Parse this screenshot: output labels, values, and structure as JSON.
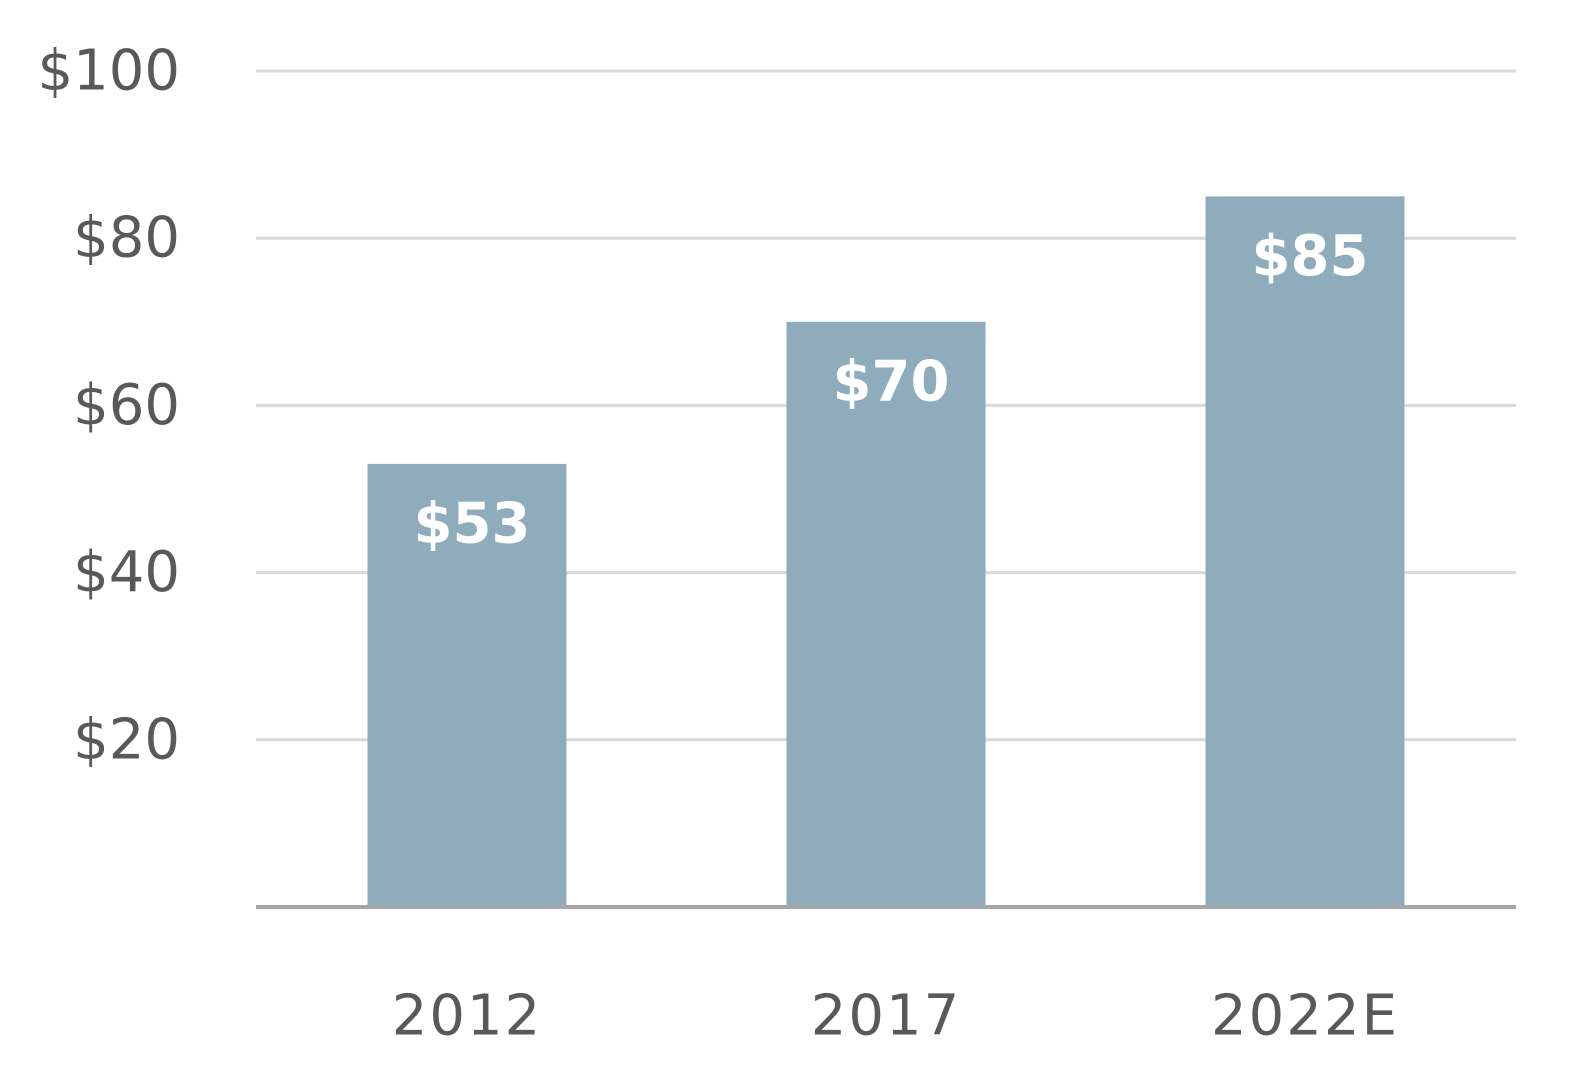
{
  "chart_data": {
    "type": "bar",
    "title": "",
    "xlabel": "",
    "ylabel": "",
    "categories": [
      "2012",
      "2017",
      "2022E"
    ],
    "values": [
      53,
      70,
      85
    ],
    "data_labels": [
      "$53",
      "$70",
      "$85"
    ],
    "y_ticks": [
      {
        "value": 20,
        "label": "$20"
      },
      {
        "value": 40,
        "label": "$40"
      },
      {
        "value": 60,
        "label": "$60"
      },
      {
        "value": 80,
        "label": "$80"
      },
      {
        "value": 100,
        "label": "$100"
      }
    ],
    "ylim": [
      0,
      100
    ],
    "grid": true,
    "legend": "none",
    "colors": {
      "bar": "#8eacbb",
      "grid": "#d9d9d9",
      "baseline": "#a6a6a6",
      "tick_text": "#595959",
      "bar_label_text": "#ffffff"
    }
  }
}
